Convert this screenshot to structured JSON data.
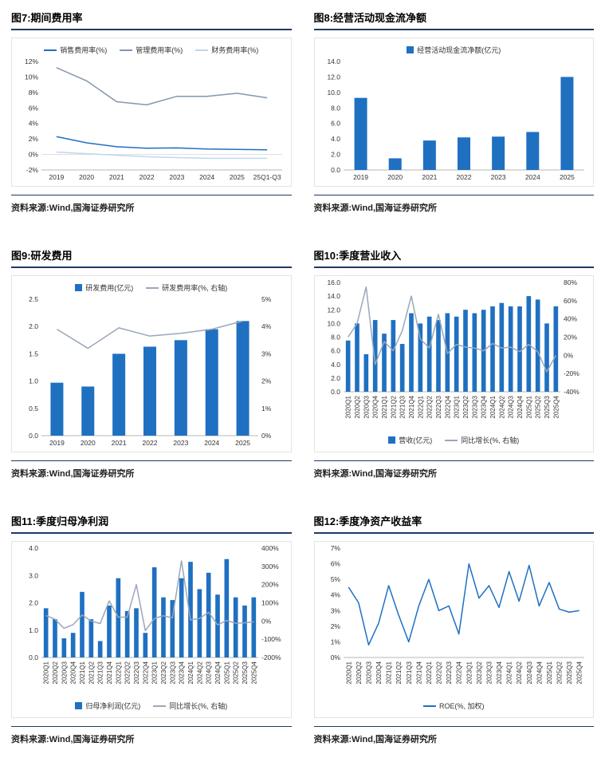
{
  "colors": {
    "primary_blue": "#1F70C1",
    "mid_gray_blue": "#8496B0",
    "light_blue": "#BDD7EE",
    "gray_line": "#9AA7B8",
    "title_rule_navy": "#1F3864"
  },
  "chart_data": [
    {
      "figure_label": "图7:期间费用率",
      "source": "资料来源:Wind,国海证券研究所",
      "type": "line",
      "legend_position": "top",
      "categories": [
        "2019",
        "2020",
        "2021",
        "2022",
        "2023",
        "2024",
        "2025",
        "25Q1-Q3"
      ],
      "left_axis": {
        "min": -2,
        "max": 12,
        "step": 2,
        "decimals": 0,
        "suffix": "%"
      },
      "right_axis": null,
      "series": [
        {
          "name": "销售费用率(%)",
          "type": "line",
          "axis": "left",
          "color": "#1F70C1",
          "values": [
            2.3,
            1.5,
            1.0,
            0.8,
            0.85,
            0.7,
            0.65,
            0.6
          ]
        },
        {
          "name": "管理费用率(%)",
          "type": "line",
          "axis": "left",
          "color": "#8496B0",
          "values": [
            11.2,
            9.5,
            6.8,
            6.4,
            7.5,
            7.5,
            7.9,
            7.3
          ]
        },
        {
          "name": "财务费用率(%)",
          "type": "line",
          "axis": "left",
          "color": "#BDD7EE",
          "values": [
            0.3,
            0.1,
            -0.1,
            -0.3,
            -0.4,
            -0.5,
            -0.5,
            -0.5
          ]
        }
      ]
    },
    {
      "figure_label": "图8:经营活动现金流净额",
      "source": "资料来源:Wind,国海证券研究所",
      "type": "bar",
      "legend_position": "top",
      "categories": [
        "2019",
        "2020",
        "2021",
        "2022",
        "2023",
        "2024",
        "2025"
      ],
      "left_axis": {
        "min": 0,
        "max": 14,
        "step": 2,
        "decimals": 1,
        "suffix": ""
      },
      "right_axis": null,
      "series": [
        {
          "name": "经营活动现金流净额(亿元)",
          "type": "bar",
          "axis": "left",
          "color": "#1F70C1",
          "values": [
            9.3,
            1.5,
            3.8,
            4.2,
            4.3,
            4.9,
            12.0
          ]
        }
      ]
    },
    {
      "figure_label": "图9:研发费用",
      "source": "资料来源:Wind,国海证券研究所",
      "type": "bar",
      "legend_position": "top",
      "categories": [
        "2019",
        "2020",
        "2021",
        "2022",
        "2023",
        "2024",
        "2025"
      ],
      "left_axis": {
        "min": 0,
        "max": 2.5,
        "step": 0.5,
        "decimals": 1,
        "suffix": ""
      },
      "right_axis": {
        "min": 0,
        "max": 5,
        "step": 1,
        "decimals": 0,
        "suffix": "%"
      },
      "series": [
        {
          "name": "研发费用(亿元)",
          "type": "bar",
          "axis": "left",
          "color": "#1F70C1",
          "values": [
            0.97,
            0.9,
            1.5,
            1.63,
            1.75,
            1.95,
            2.1
          ]
        },
        {
          "name": "研发费用率(%, 右轴)",
          "type": "line",
          "axis": "right",
          "color": "#9AA7B8",
          "values": [
            3.9,
            3.2,
            3.95,
            3.65,
            3.75,
            3.9,
            4.2
          ]
        }
      ]
    },
    {
      "figure_label": "图10:季度营业收入",
      "source": "资料来源:Wind,国海证券研究所",
      "type": "bar",
      "legend_position": "bottom",
      "categories": [
        "2020Q1",
        "2020Q2",
        "2020Q3",
        "2020Q4",
        "2021Q1",
        "2021Q2",
        "2021Q3",
        "2021Q4",
        "2022Q1",
        "2022Q2",
        "2022Q3",
        "2022Q4",
        "2023Q1",
        "2023Q2",
        "2023Q3",
        "2023Q4",
        "2024Q1",
        "2024Q2",
        "2024Q3",
        "2024Q4",
        "2025Q1",
        "2025Q2",
        "2025Q3",
        "2025Q4"
      ],
      "left_axis": {
        "min": 0,
        "max": 16,
        "step": 2,
        "decimals": 1,
        "suffix": ""
      },
      "right_axis": {
        "min": -40,
        "max": 80,
        "step": 20,
        "decimals": 0,
        "suffix": "%"
      },
      "series": [
        {
          "name": "营收(亿元)",
          "type": "bar",
          "axis": "left",
          "color": "#1F70C1",
          "values": [
            7.5,
            10.0,
            5.5,
            10.5,
            8.5,
            10.5,
            7.0,
            11.5,
            10.0,
            11.0,
            10.5,
            11.5,
            11.0,
            12.0,
            11.5,
            12.0,
            12.5,
            13.0,
            12.5,
            12.5,
            14.0,
            13.5,
            10.0,
            12.5
          ]
        },
        {
          "name": "同比增长(%, 右轴)",
          "type": "line",
          "axis": "right",
          "color": "#9AA7B8",
          "values": [
            20,
            35,
            75,
            -10,
            15,
            5,
            27,
            65,
            18,
            8,
            45,
            2,
            12,
            9,
            8,
            5,
            13,
            8,
            9,
            4,
            12,
            4,
            -18,
            0
          ]
        }
      ]
    },
    {
      "figure_label": "图11:季度归母净利润",
      "source": "资料来源:Wind,国海证券研究所",
      "type": "bar",
      "legend_position": "bottom",
      "categories": [
        "2020Q1",
        "2020Q2",
        "2020Q3",
        "2020Q4",
        "2021Q1",
        "2021Q2",
        "2021Q3",
        "2021Q4",
        "2022Q1",
        "2022Q2",
        "2022Q3",
        "2022Q4",
        "2023Q1",
        "2023Q2",
        "2023Q3",
        "2023Q4",
        "2024Q1",
        "2024Q2",
        "2024Q3",
        "2024Q4",
        "2025Q1",
        "2025Q2",
        "2025Q3",
        "2025Q4"
      ],
      "left_axis": {
        "min": 0,
        "max": 4,
        "step": 1,
        "decimals": 1,
        "suffix": ""
      },
      "right_axis": {
        "min": -200,
        "max": 400,
        "step": 100,
        "decimals": 0,
        "suffix": "%"
      },
      "series": [
        {
          "name": "归母净利润(亿元)",
          "type": "bar",
          "axis": "left",
          "color": "#1F70C1",
          "values": [
            1.8,
            1.4,
            0.7,
            0.9,
            2.4,
            1.4,
            0.6,
            1.9,
            2.9,
            1.7,
            1.8,
            0.9,
            3.3,
            2.2,
            2.1,
            2.9,
            3.5,
            2.5,
            3.1,
            2.3,
            3.6,
            2.2,
            1.9,
            2.2
          ]
        },
        {
          "name": "同比增长(%, 右轴)",
          "type": "line",
          "axis": "right",
          "color": "#9AA7B8",
          "values": [
            30,
            10,
            -40,
            -20,
            33,
            0,
            -14,
            111,
            21,
            21,
            200,
            -53,
            14,
            29,
            17,
            330,
            6,
            14,
            48,
            -21,
            3,
            -12,
            -10,
            -4
          ]
        }
      ]
    },
    {
      "figure_label": "图12:季度净资产收益率",
      "source": "资料来源:Wind,国海证券研究所",
      "type": "line",
      "legend_position": "bottom",
      "categories": [
        "2020Q1",
        "2020Q2",
        "2020Q3",
        "2020Q4",
        "2021Q1",
        "2021Q2",
        "2021Q3",
        "2021Q4",
        "2022Q1",
        "2022Q2",
        "2022Q3",
        "2022Q4",
        "2023Q1",
        "2023Q2",
        "2023Q3",
        "2023Q4",
        "2024Q1",
        "2024Q2",
        "2024Q3",
        "2024Q4",
        "2025Q1",
        "2025Q2",
        "2025Q3",
        "2025Q4"
      ],
      "left_axis": {
        "min": 0,
        "max": 7,
        "step": 1,
        "decimals": 0,
        "suffix": "%"
      },
      "right_axis": null,
      "series": [
        {
          "name": "ROE(%, 加权)",
          "type": "line",
          "axis": "left",
          "color": "#1F70C1",
          "values": [
            4.5,
            3.5,
            0.8,
            2.2,
            4.6,
            2.7,
            1.0,
            3.3,
            5.0,
            3.0,
            3.3,
            1.5,
            6.0,
            3.8,
            4.6,
            3.2,
            5.5,
            3.6,
            5.9,
            3.3,
            4.8,
            3.1,
            2.9,
            3.0
          ]
        }
      ]
    }
  ]
}
